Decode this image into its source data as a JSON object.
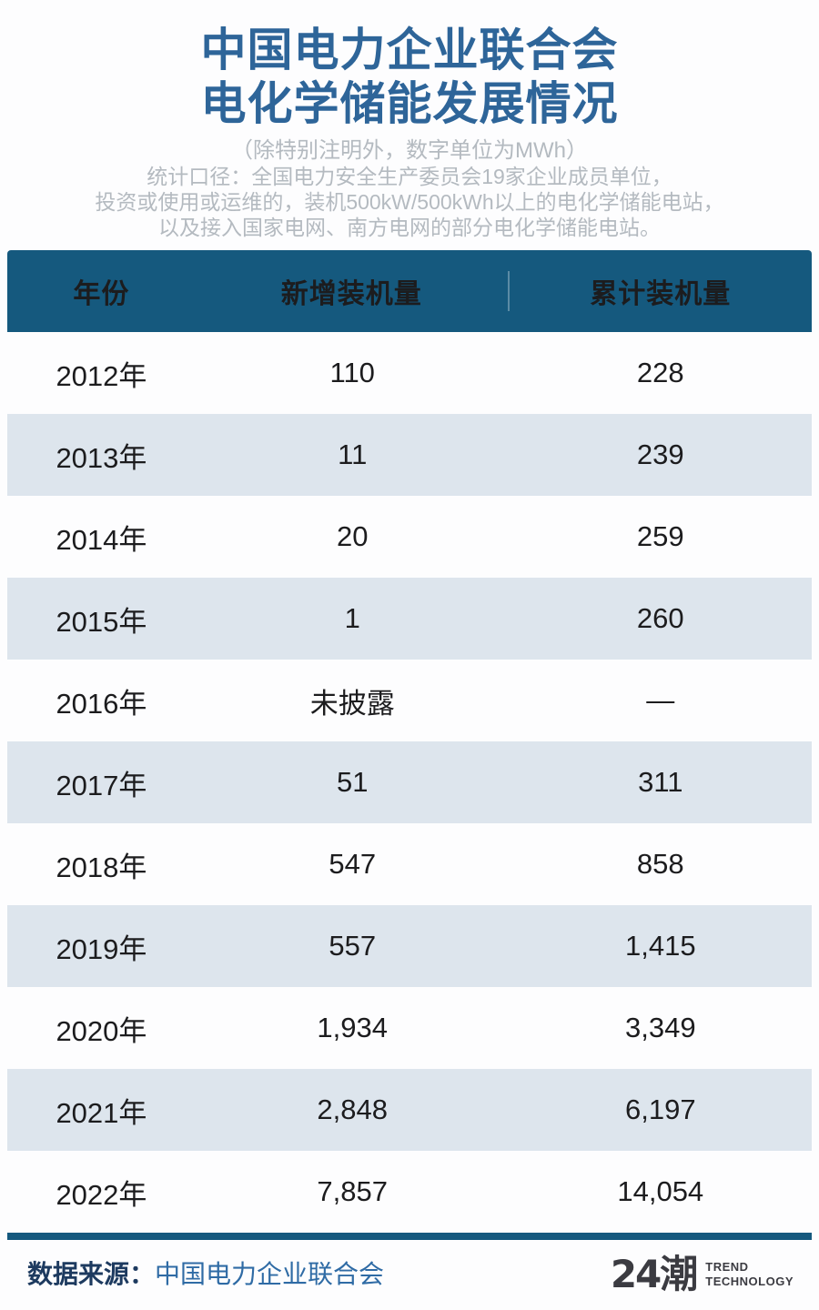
{
  "header": {
    "title_line1": "中国电力企业联合会",
    "title_line2": "电化学储能发展情况",
    "subtitle": "（除特别注明外，数字单位为MWh）",
    "note_lines": [
      "统计口径：全国电力安全生产委员会19家企业成员单位，",
      "投资或使用或运维的，装机500kW/500kWh以上的电化学储能电站，",
      "以及接入国家电网、南方电网的部分电化学储能电站。"
    ]
  },
  "table": {
    "columns": [
      "年份",
      "新增装机量",
      "累计装机量"
    ],
    "rows": [
      [
        "2012年",
        "110",
        "228"
      ],
      [
        "2013年",
        "11",
        "239"
      ],
      [
        "2014年",
        "20",
        "259"
      ],
      [
        "2015年",
        "1",
        "260"
      ],
      [
        "2016年",
        "未披露",
        "—"
      ],
      [
        "2017年",
        "51",
        "311"
      ],
      [
        "2018年",
        "547",
        "858"
      ],
      [
        "2019年",
        "557",
        "1,415"
      ],
      [
        "2020年",
        "1,934",
        "3,349"
      ],
      [
        "2021年",
        "2,848",
        "6,197"
      ],
      [
        "2022年",
        "7,857",
        "14,054"
      ]
    ]
  },
  "chart_data": {
    "type": "table",
    "title": "中国电力企业联合会电化学储能发展情况",
    "unit": "MWh",
    "columns": [
      "年份",
      "新增装机量",
      "累计装机量"
    ],
    "categories": [
      "2012",
      "2013",
      "2014",
      "2015",
      "2016",
      "2017",
      "2018",
      "2019",
      "2020",
      "2021",
      "2022"
    ],
    "series": [
      {
        "name": "新增装机量",
        "values": [
          110,
          11,
          20,
          1,
          null,
          51,
          547,
          557,
          1934,
          2848,
          7857
        ]
      },
      {
        "name": "累计装机量",
        "values": [
          228,
          239,
          259,
          260,
          null,
          311,
          858,
          1415,
          3349,
          6197,
          14054
        ]
      }
    ],
    "missing_labels": {
      "2016_new": "未披露",
      "2016_cumulative": "—"
    }
  },
  "footer": {
    "source_label": "数据来源：",
    "source_value": "中国电力企业联合会",
    "logo_text": "24潮",
    "logo_sub_line1": "TREND",
    "logo_sub_line2": "TECHNOLOGY"
  },
  "colors": {
    "page_bg": "#fdfdfe",
    "accent_blue": "#2e6599",
    "header_bg": "#15597e",
    "row_alt": "#dde5ed",
    "muted_gray": "#b4bac0",
    "footer_label": "#1d3a5f",
    "footer_value": "#2f6ba5",
    "logo_dark": "#3b3b41"
  }
}
